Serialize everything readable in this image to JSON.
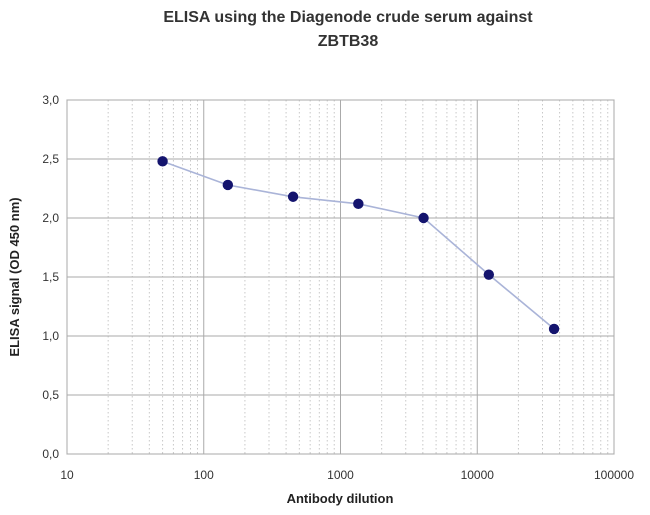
{
  "chart_data": {
    "type": "line",
    "title_lines": [
      "ELISA using the Diagenode crude serum against",
      "ZBTB38"
    ],
    "xlabel": "Antibody dilution",
    "ylabel": "ELISA signal (OD 450 nm)",
    "x_scale": "log",
    "xlim": [
      10,
      100000
    ],
    "ylim": [
      0,
      3
    ],
    "x_ticks": [
      10,
      100,
      1000,
      10000,
      100000
    ],
    "x_tick_labels": [
      "10",
      "100",
      "1000",
      "10000",
      "100000"
    ],
    "y_ticks": [
      0,
      0.5,
      1,
      1.5,
      2,
      2.5,
      3
    ],
    "y_tick_labels": [
      "0,0",
      "0,5",
      "1,0",
      "1,5",
      "2,0",
      "2,5",
      "3,0"
    ],
    "grid": true,
    "line_color": "#aab4d8",
    "marker_color": "#14146e",
    "series": [
      {
        "x": [
          50,
          150,
          450,
          1350,
          4050,
          12150,
          36450
        ],
        "y": [
          2.48,
          2.28,
          2.18,
          2.12,
          2.0,
          1.52,
          1.06
        ]
      }
    ]
  }
}
